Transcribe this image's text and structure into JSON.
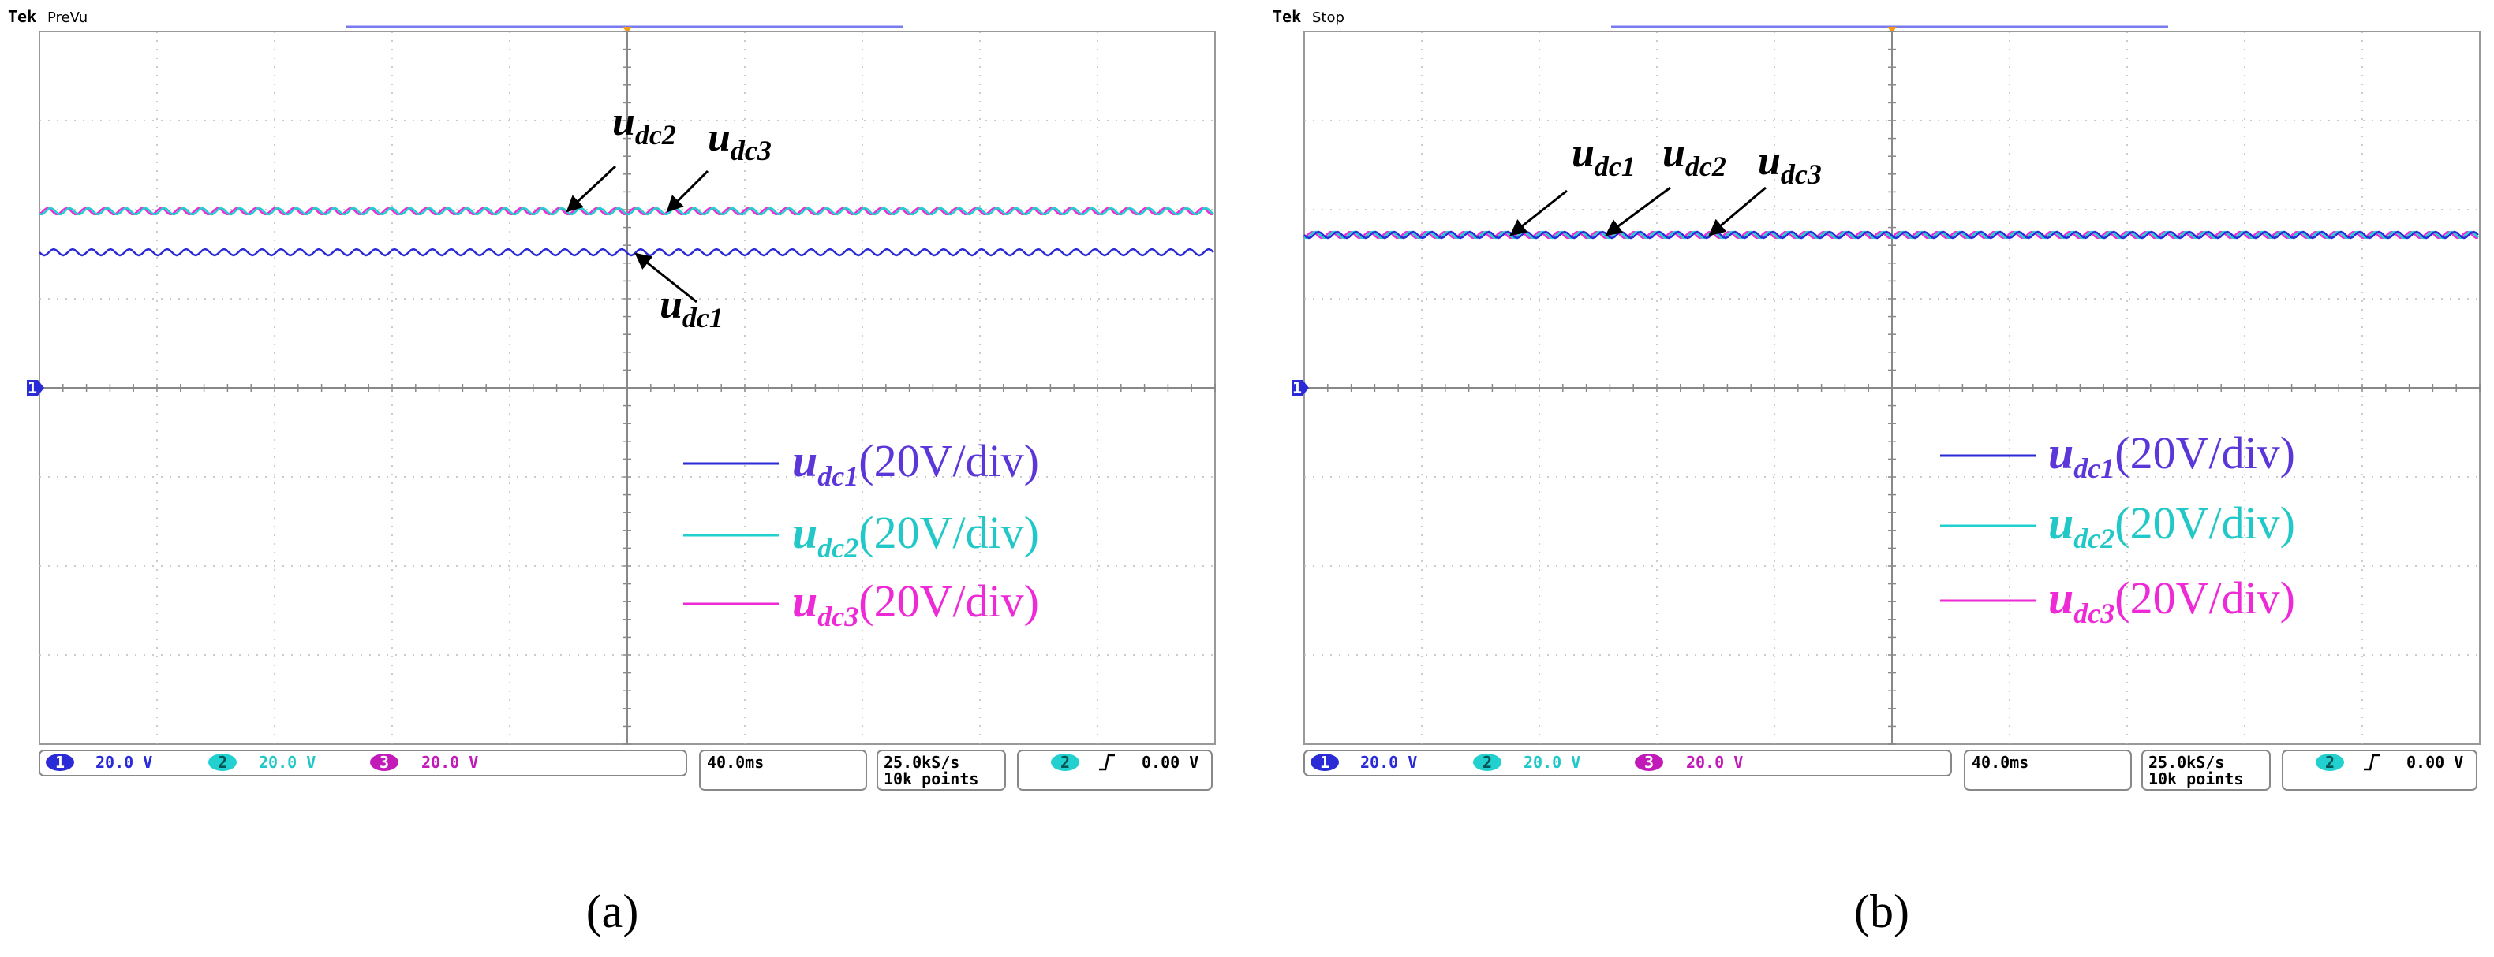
{
  "panels": [
    {
      "brand": "Tek",
      "mode": "PreVu",
      "ch_marker": "1",
      "annotations": [
        {
          "symbol": "u",
          "sub": "dc2"
        },
        {
          "symbol": "u",
          "sub": "dc3"
        },
        {
          "symbol": "u",
          "sub": "dc1"
        }
      ],
      "legend": [
        {
          "symbol": "u",
          "sub": "dc1",
          "scale": "(20V/div)",
          "color": "#2a2ad6",
          "text_color": "#5b36d8"
        },
        {
          "symbol": "u",
          "sub": "dc2",
          "scale": "(20V/div)",
          "color": "#22d0d0",
          "text_color": "#22c8c8"
        },
        {
          "symbol": "u",
          "sub": "dc3",
          "scale": "(20V/div)",
          "color": "#ee2ad6",
          "text_color": "#ee2ad6"
        }
      ],
      "status": {
        "channels": [
          {
            "badge": "1",
            "volts": "20.0 V"
          },
          {
            "badge": "2",
            "volts": "20.0 V"
          },
          {
            "badge": "3",
            "volts": "20.0 V"
          }
        ],
        "timebase": "40.0ms",
        "sample_rate": "25.0kS/s",
        "record": "10k points",
        "trigger_channel": "2",
        "trigger_level": "0.00 V"
      },
      "caption": "(a)"
    },
    {
      "brand": "Tek",
      "mode": "Stop",
      "ch_marker": "1",
      "annotations": [
        {
          "symbol": "u",
          "sub": "dc1"
        },
        {
          "symbol": "u",
          "sub": "dc2"
        },
        {
          "symbol": "u",
          "sub": "dc3"
        }
      ],
      "legend": [
        {
          "symbol": "u",
          "sub": "dc1",
          "scale": "(20V/div)",
          "color": "#2a2ad6",
          "text_color": "#5b36d8"
        },
        {
          "symbol": "u",
          "sub": "dc2",
          "scale": "(20V/div)",
          "color": "#22d0d0",
          "text_color": "#22c8c8"
        },
        {
          "symbol": "u",
          "sub": "dc3",
          "scale": "(20V/div)",
          "color": "#ee2ad6",
          "text_color": "#ee2ad6"
        }
      ],
      "status": {
        "channels": [
          {
            "badge": "1",
            "volts": "20.0 V"
          },
          {
            "badge": "2",
            "volts": "20.0 V"
          },
          {
            "badge": "3",
            "volts": "20.0 V"
          }
        ],
        "timebase": "40.0ms",
        "sample_rate": "25.0kS/s",
        "record": "10k points",
        "trigger_channel": "2",
        "trigger_level": "0.00 V"
      },
      "caption": "(b)"
    }
  ]
}
